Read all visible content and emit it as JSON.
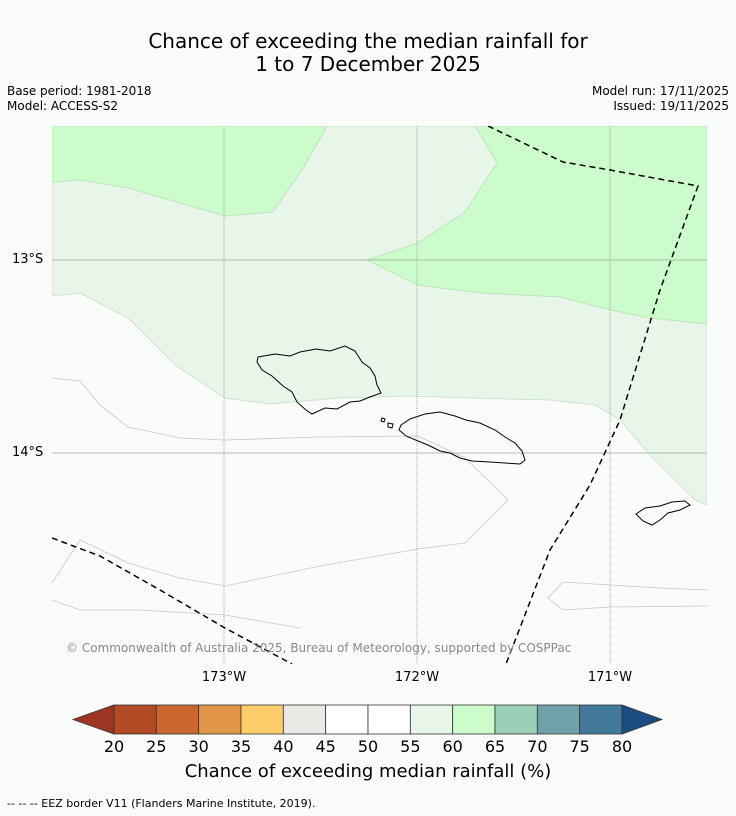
{
  "title": {
    "line1": "Chance of exceeding the median rainfall for",
    "line2": "1 to 7 December 2025"
  },
  "meta": {
    "base_period": "Base period: 1981-2018",
    "model": "Model: ACCESS-S2",
    "model_run": "Model run: 17/11/2025",
    "issued": "Issued: 19/11/2025"
  },
  "map": {
    "lat_labels": [
      "13°S",
      "14°S"
    ],
    "lon_labels": [
      "173°W",
      "172°W",
      "171°W"
    ],
    "copyright": "© Commonwealth of Australia 2025, Bureau of Meteorology, supported by COSPPac",
    "colors": {
      "band_55_60": "#e8f5e9",
      "band_60_65": "#ccfccc",
      "band_50_55": "#fafcfa",
      "land_outline": "#000000",
      "gridline": "#888888"
    }
  },
  "colorbar": {
    "ticks": [
      "20",
      "25",
      "30",
      "35",
      "40",
      "45",
      "50",
      "55",
      "60",
      "65",
      "70",
      "75",
      "80"
    ],
    "colors": [
      "#b14a25",
      "#cc6631",
      "#e19648",
      "#fdcd6b",
      "#eae9e6",
      "#ffffff",
      "#ffffff",
      "#e8f5e9",
      "#ccfccc",
      "#9ccfb8",
      "#6ea2a8",
      "#437998"
    ],
    "under_color": "#9c3521",
    "over_color": "#1a4e82",
    "label": "Chance of exceeding median rainfall (%)"
  },
  "footnote": "--  --  -- EEZ border V11 (Flanders Marine Institute, 2019)."
}
